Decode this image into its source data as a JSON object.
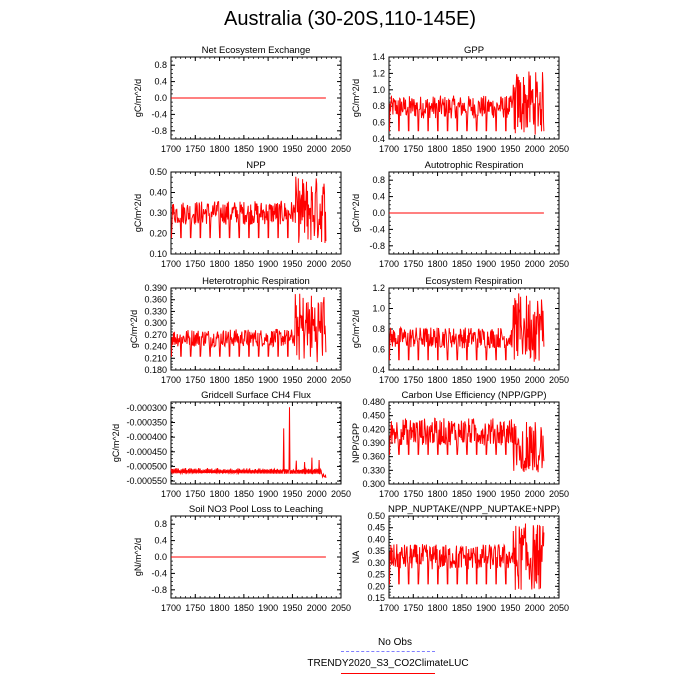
{
  "title": "Australia (30-20S,110-145E)",
  "legend": [
    {
      "label": "No Obs",
      "color": "#8080ff",
      "style": "dashed"
    },
    {
      "label": "TRENDY2020_S3_CO2ClimateLUC",
      "color": "#ff0000",
      "style": "solid"
    }
  ],
  "chart_data": [
    {
      "type": "line",
      "title": "Net Ecosystem Exchange",
      "ylabel": "gC/m^2/d",
      "xlabel": "",
      "xlim": [
        1700,
        2050
      ],
      "ylim": [
        -1.0,
        1.0
      ],
      "xticks": [
        1700,
        1750,
        1800,
        1850,
        1900,
        1950,
        2000,
        2050
      ],
      "xtick_labels": [
        "1700",
        "1750",
        "1800",
        "1850",
        "1900",
        "1950",
        "2000",
        "2050"
      ],
      "yticks": [
        -0.8,
        -0.4,
        0.0,
        0.4,
        0.8
      ],
      "ytick_labels": [
        "-0.8",
        "-0.4",
        "0.0",
        "0.4",
        "0.8"
      ],
      "series": [
        {
          "name": "TRENDY2020_S3_CO2ClimateLUC",
          "color": "#ff0000",
          "kind": "flat",
          "value": 0.0,
          "start": 1700,
          "end": 2019
        }
      ]
    },
    {
      "type": "line",
      "title": "GPP",
      "ylabel": "gC/m^2/d",
      "xlabel": "",
      "xlim": [
        1700,
        2050
      ],
      "ylim": [
        0.4,
        1.4
      ],
      "xticks": [
        1700,
        1750,
        1800,
        1850,
        1900,
        1950,
        2000,
        2050
      ],
      "xtick_labels": [
        "1700",
        "1750",
        "1800",
        "1850",
        "1900",
        "1950",
        "2000",
        "2050"
      ],
      "yticks": [
        0.4,
        0.6,
        0.8,
        1.0,
        1.2,
        1.4
      ],
      "ytick_labels": [
        "0.4",
        "0.6",
        "0.8",
        "1.0",
        "1.2",
        "1.4"
      ],
      "series": [
        {
          "name": "TRENDY2020_S3_CO2ClimateLUC",
          "color": "#ff0000",
          "kind": "cycle",
          "period": 20,
          "start": 1700,
          "end": 2019,
          "base_low": 0.5,
          "base_high": 0.93,
          "late_low": 0.45,
          "late_high": 1.23
        }
      ]
    },
    {
      "type": "line",
      "title": "NPP",
      "ylabel": "gC/m^2/d",
      "xlabel": "",
      "xlim": [
        1700,
        2050
      ],
      "ylim": [
        0.1,
        0.5
      ],
      "xticks": [
        1700,
        1750,
        1800,
        1850,
        1900,
        1950,
        2000,
        2050
      ],
      "xtick_labels": [
        "1700",
        "1750",
        "1800",
        "1850",
        "1900",
        "1950",
        "2000",
        "2050"
      ],
      "yticks": [
        0.1,
        0.2,
        0.3,
        0.4,
        0.5
      ],
      "ytick_labels": [
        "0.10",
        "0.20",
        "0.30",
        "0.40",
        "0.50"
      ],
      "series": [
        {
          "name": "TRENDY2020_S3_CO2ClimateLUC",
          "color": "#ff0000",
          "kind": "cycle",
          "period": 20,
          "start": 1700,
          "end": 2019,
          "base_low": 0.18,
          "base_high": 0.36,
          "late_low": 0.15,
          "late_high": 0.48
        }
      ]
    },
    {
      "type": "line",
      "title": "Autotrophic Respiration",
      "ylabel": "gC/m^2/d",
      "xlabel": "",
      "xlim": [
        1700,
        2050
      ],
      "ylim": [
        -1.0,
        1.0
      ],
      "xticks": [
        1700,
        1750,
        1800,
        1850,
        1900,
        1950,
        2000,
        2050
      ],
      "xtick_labels": [
        "1700",
        "1750",
        "1800",
        "1850",
        "1900",
        "1950",
        "2000",
        "2050"
      ],
      "yticks": [
        -0.8,
        -0.4,
        0.0,
        0.4,
        0.8
      ],
      "ytick_labels": [
        "-0.8",
        "-0.4",
        "0.0",
        "0.4",
        "0.8"
      ],
      "series": [
        {
          "name": "TRENDY2020_S3_CO2ClimateLUC",
          "color": "#ff0000",
          "kind": "flat",
          "value": 0.0,
          "start": 1700,
          "end": 2019
        }
      ]
    },
    {
      "type": "line",
      "title": "Heterotrophic Respiration",
      "ylabel": "gC/m^2/d",
      "xlabel": "",
      "xlim": [
        1700,
        2050
      ],
      "ylim": [
        0.18,
        0.39
      ],
      "xticks": [
        1700,
        1750,
        1800,
        1850,
        1900,
        1950,
        2000,
        2050
      ],
      "xtick_labels": [
        "1700",
        "1750",
        "1800",
        "1850",
        "1900",
        "1950",
        "2000",
        "2050"
      ],
      "yticks": [
        0.18,
        0.21,
        0.24,
        0.27,
        0.3,
        0.33,
        0.36,
        0.39
      ],
      "ytick_labels": [
        "0.180",
        "0.210",
        "0.240",
        "0.270",
        "0.300",
        "0.330",
        "0.360",
        "0.390"
      ],
      "series": [
        {
          "name": "TRENDY2020_S3_CO2ClimateLUC",
          "color": "#ff0000",
          "kind": "cycle",
          "period": 20,
          "start": 1700,
          "end": 2019,
          "base_low": 0.215,
          "base_high": 0.285,
          "late_low": 0.2,
          "late_high": 0.38
        }
      ]
    },
    {
      "type": "line",
      "title": "Ecosystem Respiration",
      "ylabel": "gC/m^2/d",
      "xlabel": "",
      "xlim": [
        1700,
        2050
      ],
      "ylim": [
        0.4,
        1.2
      ],
      "xticks": [
        1700,
        1750,
        1800,
        1850,
        1900,
        1950,
        2000,
        2050
      ],
      "xtick_labels": [
        "1700",
        "1750",
        "1800",
        "1850",
        "1900",
        "1950",
        "2000",
        "2050"
      ],
      "yticks": [
        0.4,
        0.6,
        0.8,
        1.0,
        1.2
      ],
      "ytick_labels": [
        "0.4",
        "0.6",
        "0.8",
        "1.0",
        "1.2"
      ],
      "series": [
        {
          "name": "TRENDY2020_S3_CO2ClimateLUC",
          "color": "#ff0000",
          "kind": "cycle",
          "period": 20,
          "start": 1700,
          "end": 2019,
          "base_low": 0.5,
          "base_high": 0.82,
          "late_low": 0.48,
          "late_high": 1.15
        }
      ]
    },
    {
      "type": "line",
      "title": "Gridcell Surface CH4 Flux",
      "ylabel": "gC/m^2/d",
      "xlabel": "",
      "xlim": [
        1700,
        2050
      ],
      "ylim": [
        -0.00056,
        -0.00028
      ],
      "xticks": [
        1700,
        1750,
        1800,
        1850,
        1900,
        1950,
        2000,
        2050
      ],
      "xtick_labels": [
        "1700",
        "1750",
        "1800",
        "1850",
        "1900",
        "1950",
        "2000",
        "2050"
      ],
      "yticks": [
        -0.00055,
        -0.0005,
        -0.00045,
        -0.0004,
        -0.00035,
        -0.0003
      ],
      "ytick_labels": [
        "-0.000550",
        "-0.000500",
        "-0.000450",
        "-0.000400",
        "-0.000350",
        "-0.000300"
      ],
      "series": [
        {
          "name": "TRENDY2020_S3_CO2ClimateLUC",
          "color": "#ff0000",
          "kind": "ch4",
          "start": 1700,
          "end": 2019,
          "base_low": -0.000525,
          "base_high": -0.000505,
          "spikes": [
            {
              "year": 1932,
              "value": -0.00037
            },
            {
              "year": 1944,
              "value": -0.000298
            },
            {
              "year": 1958,
              "value": -0.00048
            },
            {
              "year": 1975,
              "value": -0.000485
            },
            {
              "year": 1990,
              "value": -0.00047
            },
            {
              "year": 2005,
              "value": -0.000478
            }
          ]
        }
      ]
    },
    {
      "type": "line",
      "title": "Carbon Use Efficiency (NPP/GPP)",
      "ylabel": "NPP/GPP",
      "xlabel": "",
      "xlim": [
        1700,
        2050
      ],
      "ylim": [
        0.3,
        0.48
      ],
      "xticks": [
        1700,
        1750,
        1800,
        1850,
        1900,
        1950,
        2000,
        2050
      ],
      "xtick_labels": [
        "1700",
        "1750",
        "1800",
        "1850",
        "1900",
        "1950",
        "2000",
        "2050"
      ],
      "yticks": [
        0.3,
        0.33,
        0.36,
        0.39,
        0.42,
        0.45,
        0.48
      ],
      "ytick_labels": [
        "0.300",
        "0.330",
        "0.360",
        "0.390",
        "0.420",
        "0.450",
        "0.480"
      ],
      "series": [
        {
          "name": "TRENDY2020_S3_CO2ClimateLUC",
          "color": "#ff0000",
          "kind": "cycle_inv",
          "period": 20,
          "start": 1700,
          "end": 2019,
          "base_low": 0.365,
          "base_high": 0.445,
          "late_low": 0.325,
          "late_high": 0.44
        }
      ]
    },
    {
      "type": "line",
      "title": "Soil NO3 Pool Loss to Leaching",
      "ylabel": "gN/m^2/d",
      "xlabel": "",
      "xlim": [
        1700,
        2050
      ],
      "ylim": [
        -1.0,
        1.0
      ],
      "xticks": [
        1700,
        1750,
        1800,
        1850,
        1900,
        1950,
        2000,
        2050
      ],
      "xtick_labels": [
        "1700",
        "1750",
        "1800",
        "1850",
        "1900",
        "1950",
        "2000",
        "2050"
      ],
      "yticks": [
        -0.8,
        -0.4,
        0.0,
        0.4,
        0.8
      ],
      "ytick_labels": [
        "-0.8",
        "-0.4",
        "0.0",
        "0.4",
        "0.8"
      ],
      "series": [
        {
          "name": "TRENDY2020_S3_CO2ClimateLUC",
          "color": "#ff0000",
          "kind": "flat",
          "value": 0.0,
          "start": 1700,
          "end": 2019
        }
      ]
    },
    {
      "type": "line",
      "title": "NPP_NUPTAKE/(NPP_NUPTAKE+NPP)",
      "ylabel": "NA",
      "xlabel": "",
      "xlim": [
        1700,
        2050
      ],
      "ylim": [
        0.15,
        0.5
      ],
      "xticks": [
        1700,
        1750,
        1800,
        1850,
        1900,
        1950,
        2000,
        2050
      ],
      "xtick_labels": [
        "1700",
        "1750",
        "1800",
        "1850",
        "1900",
        "1950",
        "2000",
        "2050"
      ],
      "yticks": [
        0.15,
        0.2,
        0.25,
        0.3,
        0.35,
        0.4,
        0.45,
        0.5
      ],
      "ytick_labels": [
        "0.15",
        "0.20",
        "0.25",
        "0.30",
        "0.35",
        "0.40",
        "0.45",
        "0.50"
      ],
      "series": [
        {
          "name": "TRENDY2020_S3_CO2ClimateLUC",
          "color": "#ff0000",
          "kind": "cycle",
          "period": 20,
          "start": 1700,
          "end": 2019,
          "base_low": 0.21,
          "base_high": 0.38,
          "late_low": 0.18,
          "late_high": 0.47
        }
      ]
    }
  ]
}
